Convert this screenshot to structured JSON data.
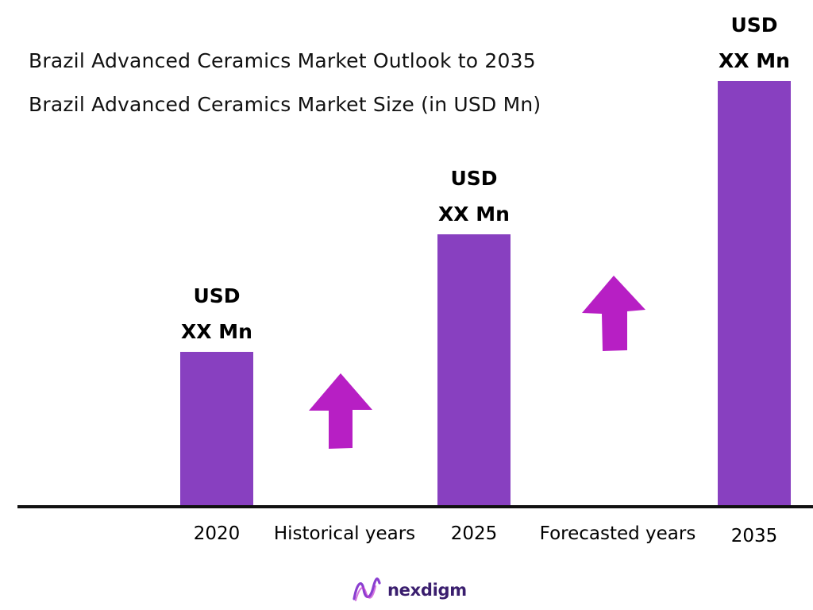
{
  "title": "Brazil Advanced Ceramics Market Outlook to 2035",
  "subtitle": "Brazil Advanced Ceramics Market Size (in USD Mn)",
  "colors": {
    "bar": "#8840c0",
    "arrow": "#b71fc4",
    "axis": "#111111",
    "brand": "#3a1e6e"
  },
  "chart_data": {
    "type": "bar",
    "title": "Brazil Advanced Ceramics Market Outlook to 2035",
    "subtitle": "Brazil Advanced Ceramics Market Size (in USD Mn)",
    "categories": [
      "2020",
      "2025",
      "2035"
    ],
    "values": [
      1.0,
      1.76,
      2.75
    ],
    "value_labels": [
      {
        "line1": "USD",
        "line2": "XX Mn"
      },
      {
        "line1": "USD",
        "line2": "XX Mn"
      },
      {
        "line1": "USD",
        "line2": "XX Mn"
      }
    ],
    "period_labels": [
      "Historical years",
      "Forecasted years"
    ],
    "xlabel": "",
    "ylabel": "",
    "grid": false,
    "legend": "none"
  },
  "brand": {
    "name": "nexdigm",
    "icon": "nexdigm-logo-icon"
  }
}
